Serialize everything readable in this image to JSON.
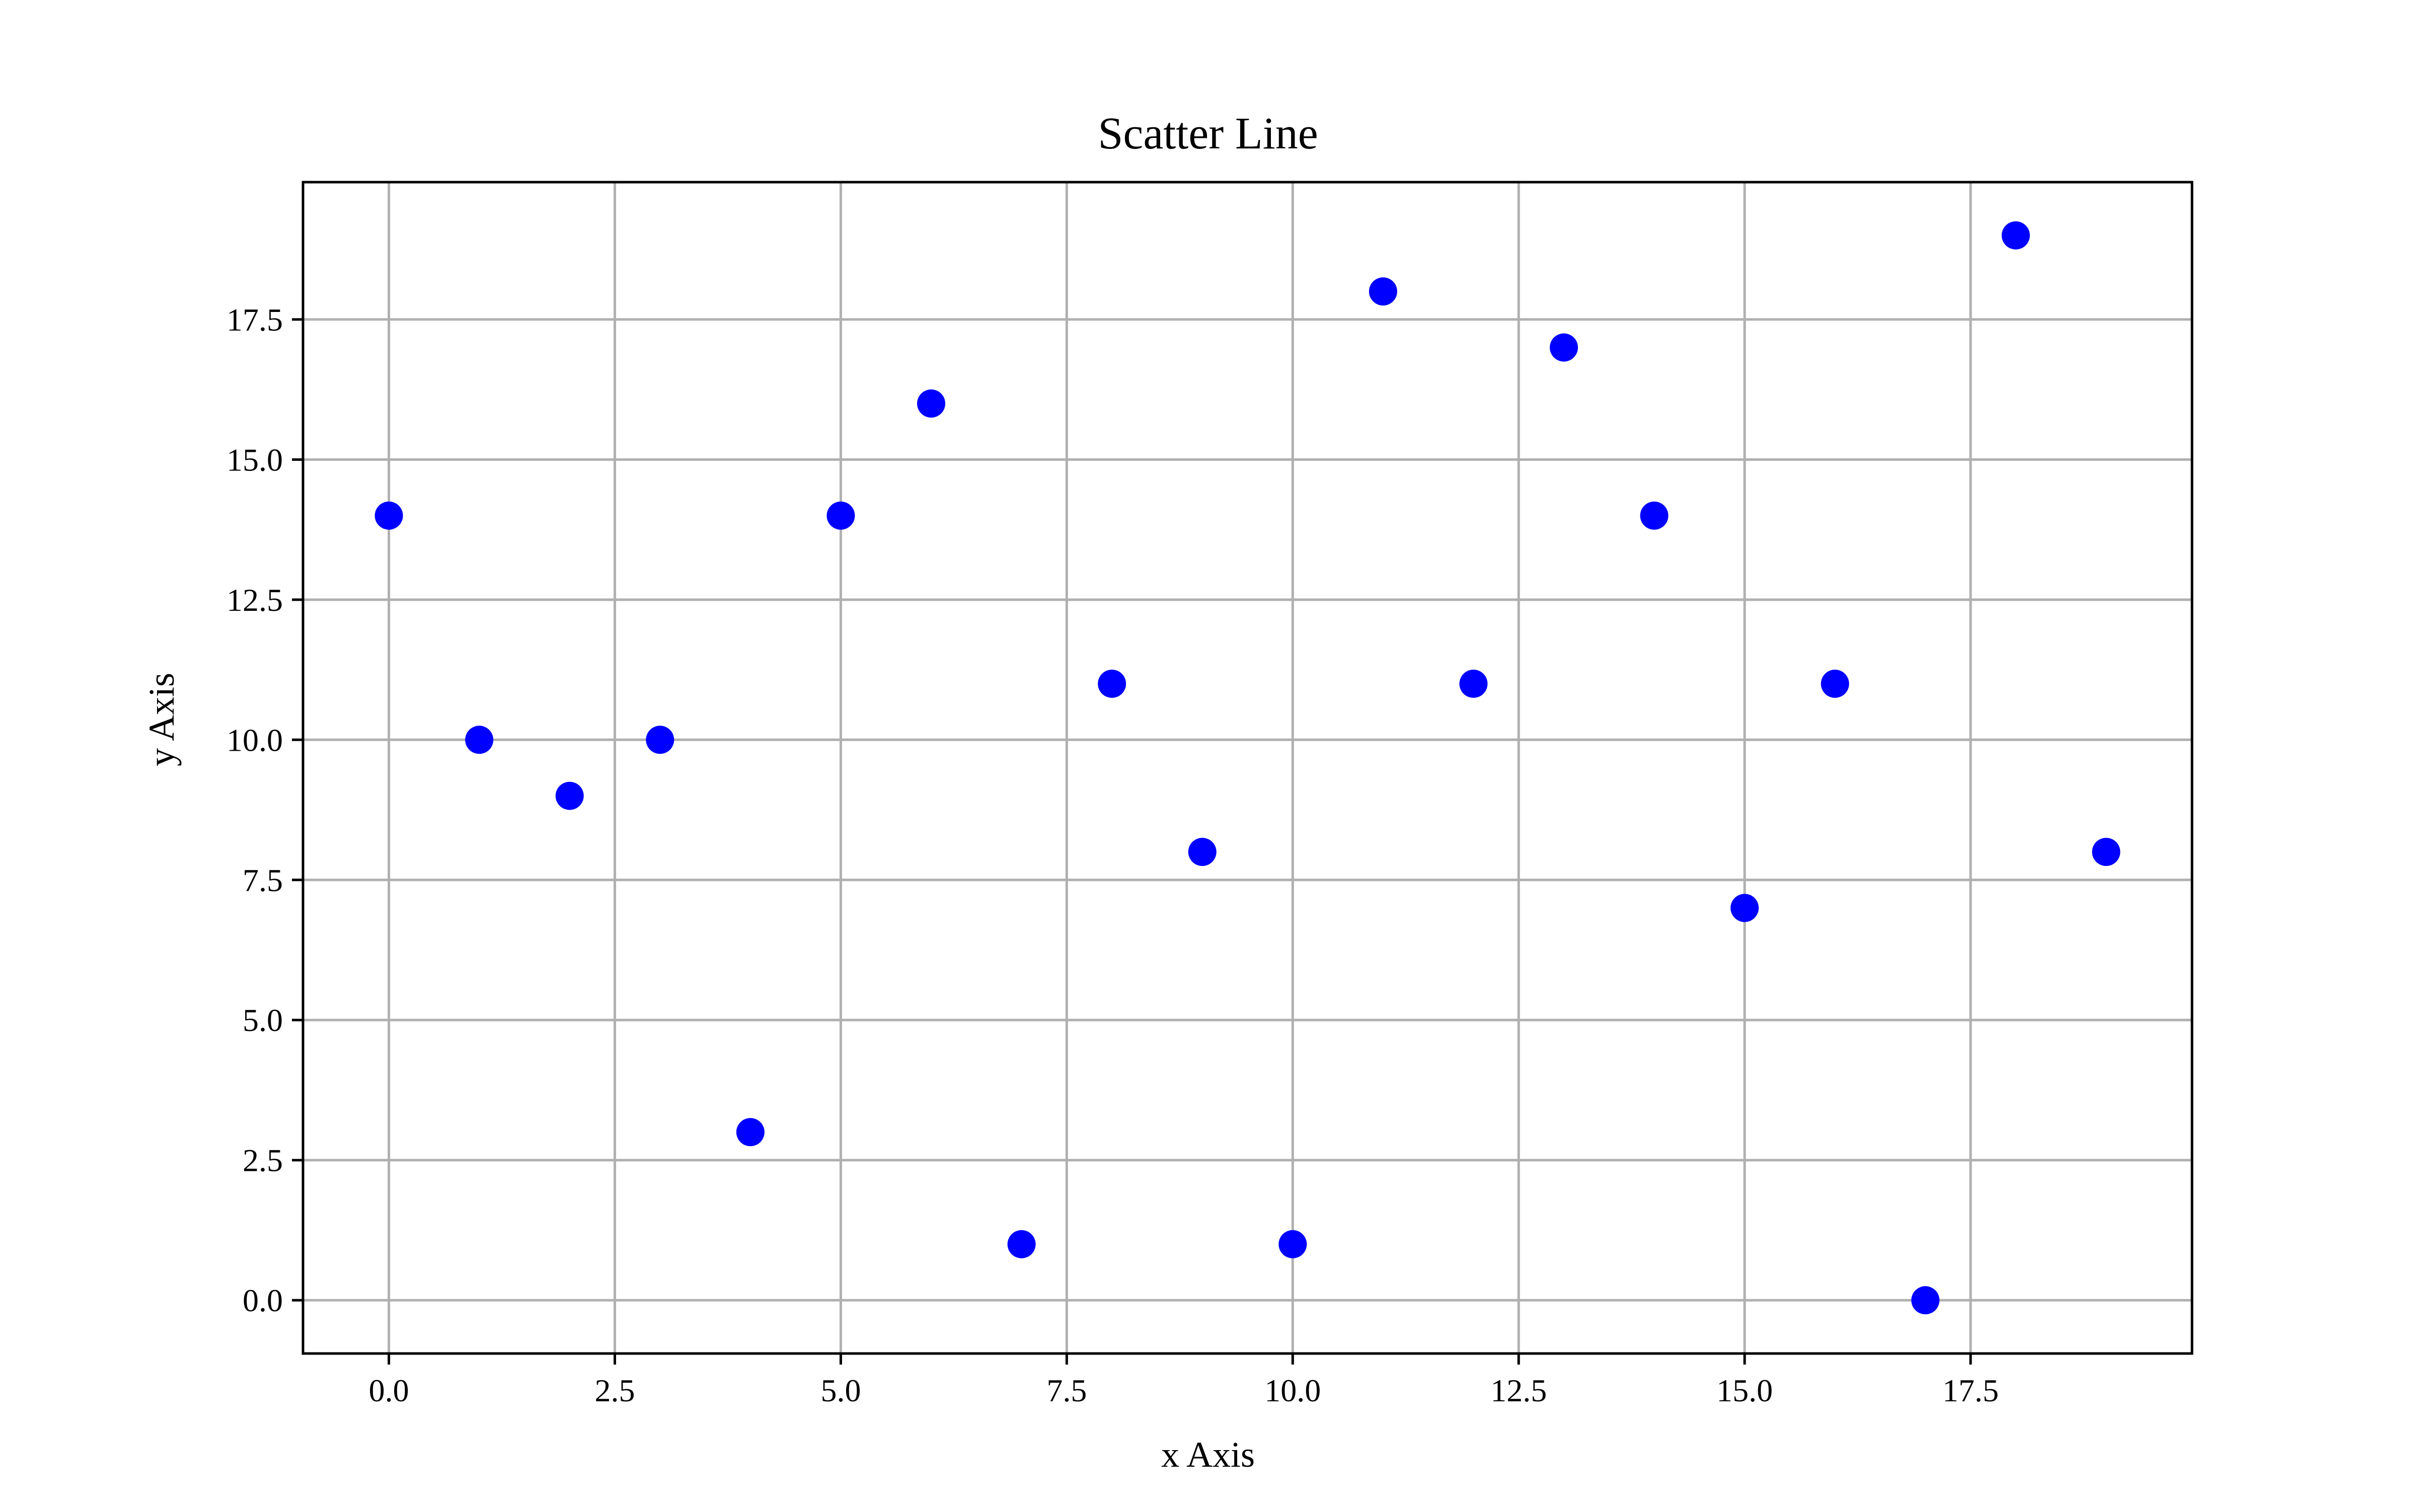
{
  "chart_data": {
    "type": "scatter",
    "title": "Scatter Line",
    "xlabel": "x Axis",
    "ylabel": "y Axis",
    "xlim": [
      -0.95,
      19.95
    ],
    "ylim": [
      -0.95,
      19.95
    ],
    "x_ticks": [
      0.0,
      2.5,
      5.0,
      7.5,
      10.0,
      12.5,
      15.0,
      17.5
    ],
    "y_ticks": [
      0.0,
      2.5,
      5.0,
      7.5,
      10.0,
      12.5,
      15.0,
      17.5
    ],
    "x_tick_labels": [
      "0.0",
      "2.5",
      "5.0",
      "7.5",
      "10.0",
      "12.5",
      "15.0",
      "17.5"
    ],
    "y_tick_labels": [
      "0.0",
      "2.5",
      "5.0",
      "7.5",
      "10.0",
      "12.5",
      "15.0",
      "17.5"
    ],
    "grid": true,
    "marker_color": "#0000ff",
    "x": [
      0,
      1,
      2,
      3,
      4,
      5,
      6,
      7,
      8,
      9,
      10,
      11,
      12,
      13,
      14,
      15,
      16,
      17,
      18,
      19
    ],
    "y": [
      14,
      10,
      9,
      10,
      3,
      14,
      16,
      1,
      11,
      8,
      1,
      18,
      11,
      17,
      14,
      7,
      11,
      0,
      19,
      8
    ]
  }
}
